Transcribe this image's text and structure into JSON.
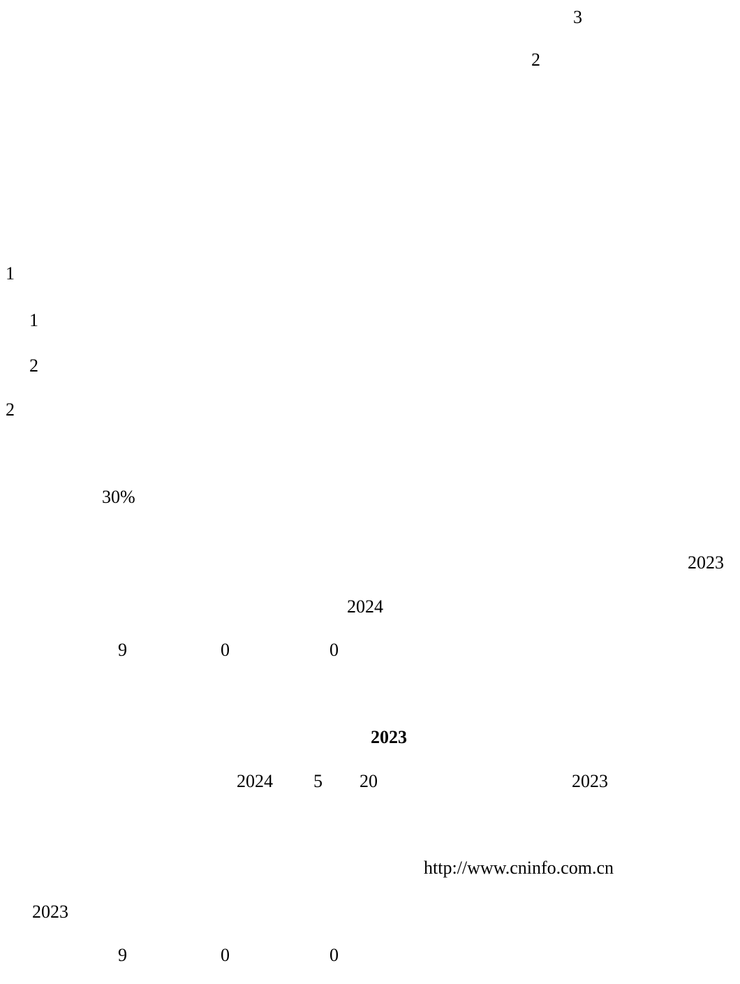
{
  "fragments": {
    "top_3": "3",
    "top_2": "2",
    "item_1": "1",
    "sub_1": "1",
    "sub_2": "2",
    "item_2": "2",
    "percent": "30%",
    "year_right": "2023",
    "year_center": "2024",
    "vote_a": {
      "n1": "9",
      "n2": "0",
      "n3": "0"
    },
    "heading_year": "2023",
    "date_line": {
      "year": "2024",
      "month": "5",
      "day": "20",
      "report_year": "2023"
    },
    "url": "http://www.cninfo.com.cn",
    "year_left": "2023",
    "vote_b": {
      "n1": "9",
      "n2": "0",
      "n3": "0"
    }
  }
}
